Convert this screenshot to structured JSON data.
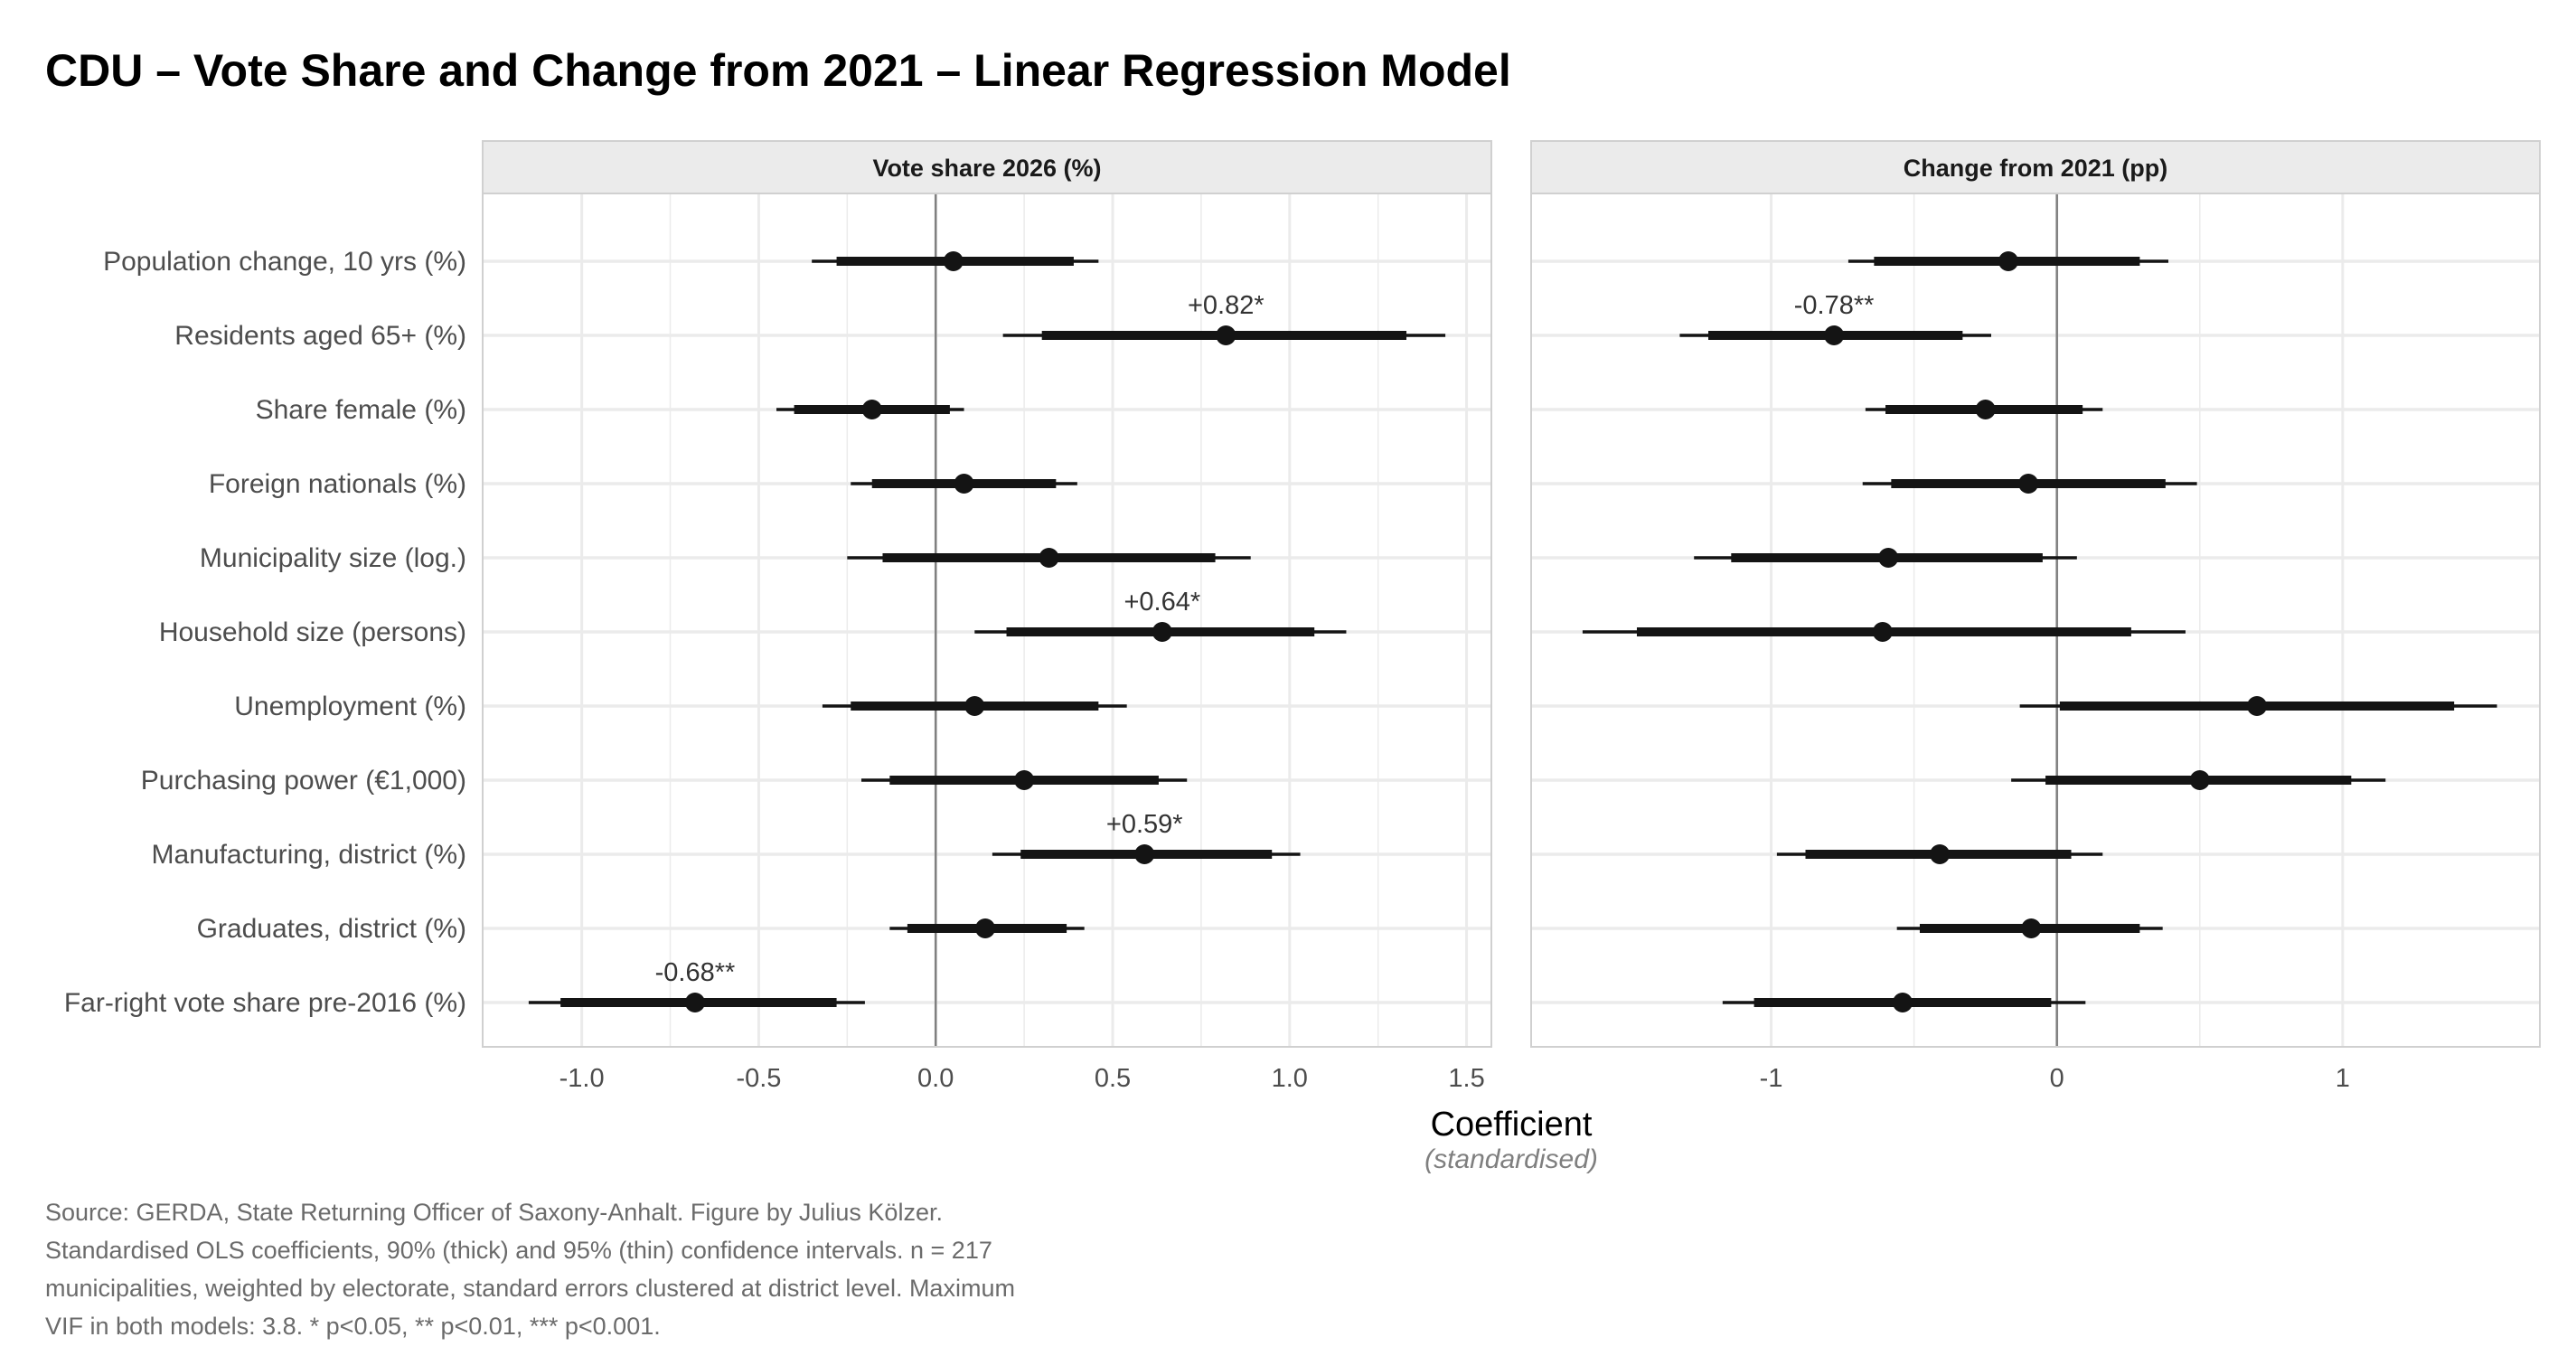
{
  "title": "CDU – Vote Share and Change from 2021 – Linear Regression Model",
  "caption": "Source: GERDA, State Returning Officer of Saxony-Anhalt. Figure by Julius Kölzer. Standardised OLS coefficients, 90% (thick) and 95% (thin) confidence intervals. n = 217 municipalities, weighted by electorate, standard errors clustered at district level. Maximum VIF in both models: 3.8. * p<0.05, ** p<0.01, *** p<0.001.",
  "colors": {
    "point": "#141414",
    "grid": "#ebebeb",
    "zero_line": "#808080",
    "strip_bg": "#ebebeb",
    "panel_border": "#d0d0d0"
  },
  "chart_data": {
    "type": "scatter",
    "subtype": "coefficient-plot",
    "xlabel": "Coefficient",
    "xlabel_sub": "(standardised)",
    "grid": true,
    "legend": "none",
    "variables": [
      "Population change, 10 yrs (%)",
      "Residents aged 65+ (%)",
      "Share female (%)",
      "Foreign nationals (%)",
      "Municipality size (log.)",
      "Household size (persons)",
      "Unemployment (%)",
      "Purchasing power (€1,000)",
      "Manufacturing, district (%)",
      "Graduates, district (%)",
      "Far-right vote share pre-2016 (%)"
    ],
    "panels": [
      {
        "name": "Vote share 2026 (%)",
        "xlim": [
          -1.28,
          1.57
        ],
        "xticks": [
          -1.0,
          -0.5,
          0.0,
          0.5,
          1.0,
          1.5
        ],
        "xtick_labels": [
          "-1.0",
          "-0.5",
          "0.0",
          "0.5",
          "1.0",
          "1.5"
        ],
        "estimates": [
          0.05,
          0.82,
          -0.18,
          0.08,
          0.32,
          0.64,
          0.11,
          0.25,
          0.59,
          0.14,
          -0.68
        ],
        "ci90": [
          [
            -0.28,
            0.39
          ],
          [
            0.3,
            1.33
          ],
          [
            -0.4,
            0.04
          ],
          [
            -0.18,
            0.34
          ],
          [
            -0.15,
            0.79
          ],
          [
            0.2,
            1.07
          ],
          [
            -0.24,
            0.46
          ],
          [
            -0.13,
            0.63
          ],
          [
            0.24,
            0.95
          ],
          [
            -0.08,
            0.37
          ],
          [
            -1.06,
            -0.28
          ]
        ],
        "ci95": [
          [
            -0.35,
            0.46
          ],
          [
            0.19,
            1.44
          ],
          [
            -0.45,
            0.08
          ],
          [
            -0.24,
            0.4
          ],
          [
            -0.25,
            0.89
          ],
          [
            0.11,
            1.16
          ],
          [
            -0.32,
            0.54
          ],
          [
            -0.21,
            0.71
          ],
          [
            0.16,
            1.03
          ],
          [
            -0.13,
            0.42
          ],
          [
            -1.15,
            -0.2
          ]
        ],
        "annotations": [
          "",
          "+0.82*",
          "",
          "",
          "",
          "+0.64*",
          "",
          "",
          "+0.59*",
          "",
          "-0.68**"
        ]
      },
      {
        "name": "Change from 2021 (pp)",
        "xlim": [
          -1.84,
          1.69
        ],
        "xticks": [
          -1,
          0,
          1
        ],
        "xtick_labels": [
          "-1",
          "0",
          "1"
        ],
        "estimates": [
          -0.17,
          -0.78,
          -0.25,
          -0.1,
          -0.59,
          -0.61,
          0.7,
          0.5,
          -0.41,
          -0.09,
          -0.54
        ],
        "ci90": [
          [
            -0.64,
            0.29
          ],
          [
            -1.22,
            -0.33
          ],
          [
            -0.6,
            0.09
          ],
          [
            -0.58,
            0.38
          ],
          [
            -1.14,
            -0.05
          ],
          [
            -1.47,
            0.26
          ],
          [
            0.01,
            1.39
          ],
          [
            -0.04,
            1.03
          ],
          [
            -0.88,
            0.05
          ],
          [
            -0.48,
            0.29
          ],
          [
            -1.06,
            -0.02
          ]
        ],
        "ci95": [
          [
            -0.73,
            0.39
          ],
          [
            -1.32,
            -0.23
          ],
          [
            -0.67,
            0.16
          ],
          [
            -0.68,
            0.49
          ],
          [
            -1.27,
            0.07
          ],
          [
            -1.66,
            0.45
          ],
          [
            -0.13,
            1.54
          ],
          [
            -0.16,
            1.15
          ],
          [
            -0.98,
            0.16
          ],
          [
            -0.56,
            0.37
          ],
          [
            -1.17,
            0.1
          ]
        ],
        "annotations": [
          "",
          "-0.78**",
          "",
          "",
          "",
          "",
          "",
          "",
          "",
          "",
          ""
        ]
      }
    ]
  }
}
